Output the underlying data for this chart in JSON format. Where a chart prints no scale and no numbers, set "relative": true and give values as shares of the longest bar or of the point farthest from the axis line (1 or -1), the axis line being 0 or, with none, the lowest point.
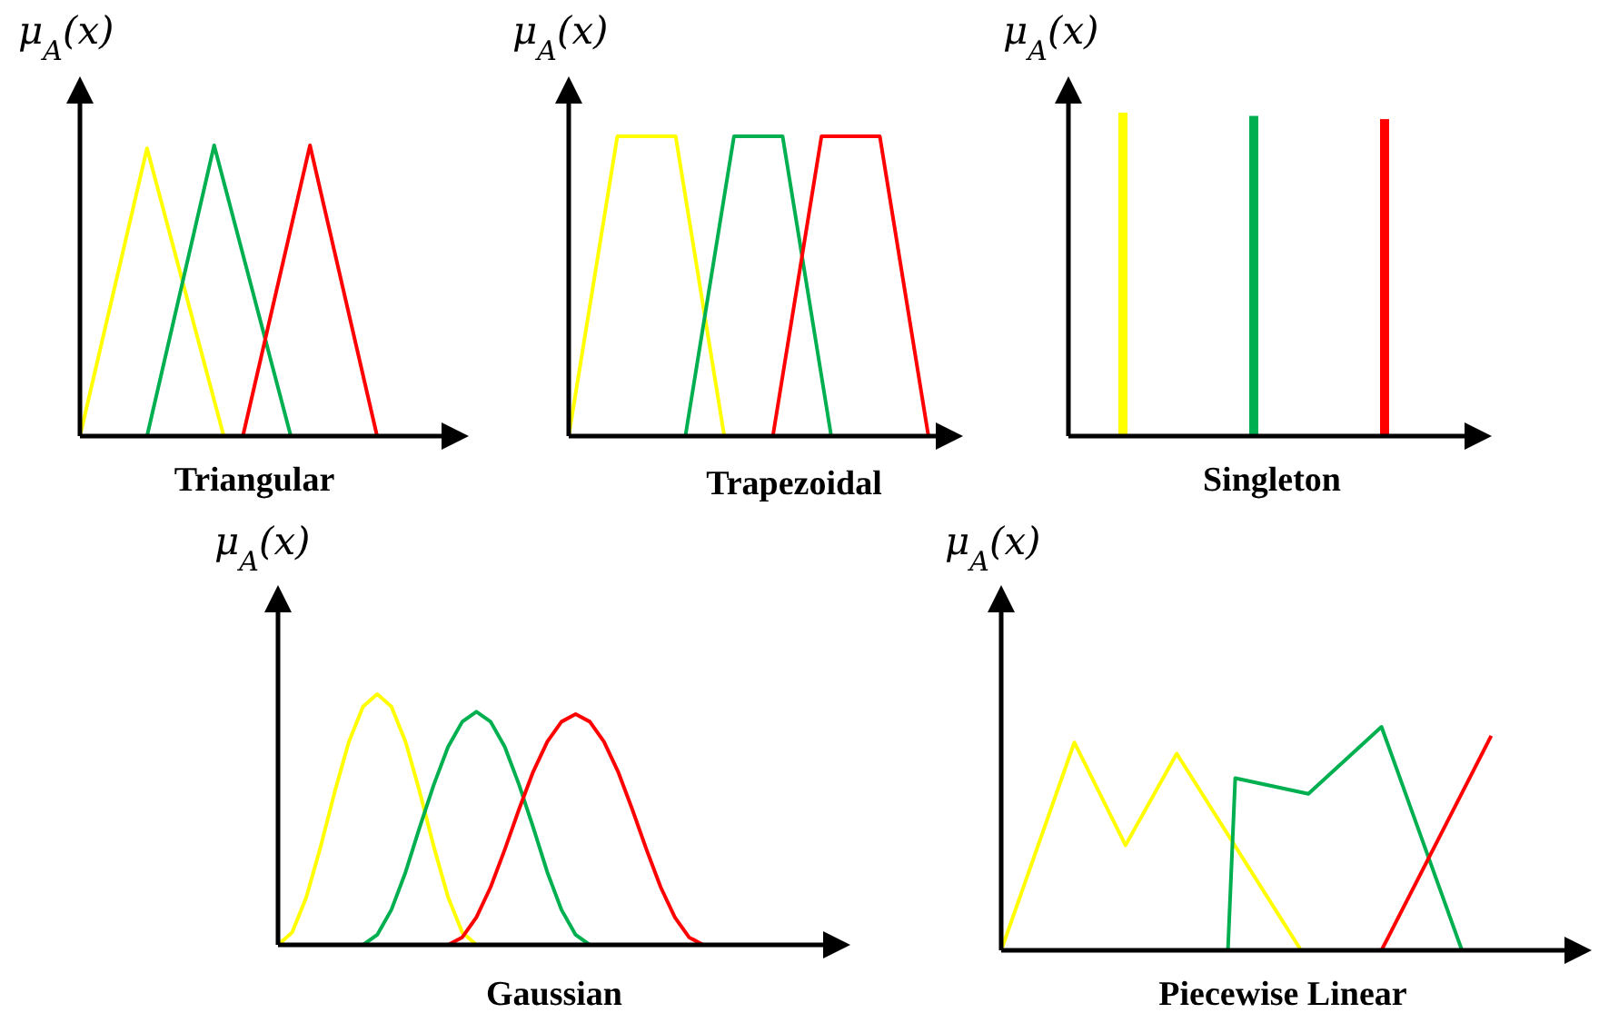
{
  "chart_data": [
    {
      "type": "line",
      "title": "Triangular",
      "ylabel": "μ$_{A}$(x)",
      "relative": true,
      "categories": [
        null,
        null,
        null,
        null,
        null,
        null,
        null,
        null,
        null,
        null,
        null,
        null,
        null,
        null,
        null,
        null,
        null,
        null,
        null,
        null,
        null,
        null,
        null,
        null,
        null,
        null,
        null,
        null,
        null,
        null,
        null,
        null,
        null,
        null,
        null,
        null,
        null,
        null,
        null,
        null,
        null
      ],
      "series": [
        {
          "color": "#ffff00",
          "values": [
            0,
            null,
            null,
            null,
            null,
            null,
            null,
            0.99,
            null,
            null,
            null,
            null,
            null,
            null,
            null,
            0,
            null,
            null,
            null,
            null,
            null,
            null,
            null,
            null,
            null,
            null,
            null,
            null,
            null,
            null,
            null,
            null,
            null,
            null,
            null,
            null,
            null,
            null,
            null,
            null,
            null
          ]
        },
        {
          "color": "#00b050",
          "values": [
            null,
            null,
            null,
            null,
            null,
            null,
            null,
            0,
            null,
            null,
            null,
            null,
            null,
            null,
            1,
            null,
            null,
            null,
            null,
            null,
            null,
            null,
            0,
            null,
            null,
            null,
            null,
            null,
            null,
            null,
            null,
            null,
            null,
            null,
            null,
            null,
            null,
            null,
            null,
            null,
            null
          ]
        },
        {
          "color": "#ff0000",
          "values": [
            null,
            null,
            null,
            null,
            null,
            null,
            null,
            null,
            null,
            null,
            null,
            null,
            null,
            null,
            null,
            null,
            null,
            0,
            null,
            null,
            null,
            null,
            null,
            null,
            1,
            null,
            null,
            null,
            null,
            null,
            null,
            0,
            null,
            null,
            null,
            null,
            null,
            null,
            null,
            null,
            null
          ]
        }
      ]
    },
    {
      "type": "line",
      "title": "Trapezoidal",
      "ylabel": "μ$_{A}$(x)",
      "relative": true,
      "categories": [
        null,
        null,
        null,
        null,
        null,
        null,
        null,
        null,
        null,
        null,
        null,
        null,
        null,
        null,
        null,
        null,
        null,
        null,
        null,
        null,
        null,
        null,
        null,
        null,
        null,
        null,
        null,
        null,
        null,
        null,
        null,
        null,
        null,
        null,
        null,
        null,
        null,
        null,
        null,
        null,
        null
      ],
      "series": [
        {
          "color": "#ffff00",
          "values": [
            0,
            null,
            null,
            null,
            null,
            1,
            null,
            null,
            null,
            null,
            null,
            1,
            null,
            null,
            null,
            null,
            0,
            null,
            null,
            null,
            null,
            null,
            null,
            null,
            null,
            null,
            null,
            null,
            null,
            null,
            null,
            null,
            null,
            null,
            null,
            null,
            null,
            null,
            null,
            null,
            null
          ]
        },
        {
          "color": "#00b050",
          "values": [
            null,
            null,
            null,
            null,
            null,
            null,
            null,
            null,
            null,
            null,
            null,
            null,
            0,
            null,
            null,
            null,
            null,
            1,
            null,
            null,
            null,
            null,
            1,
            null,
            null,
            null,
            null,
            0,
            null,
            null,
            null,
            null,
            null,
            null,
            null,
            null,
            null,
            null,
            null,
            null,
            null
          ]
        },
        {
          "color": "#ff0000",
          "values": [
            null,
            null,
            null,
            null,
            null,
            null,
            null,
            null,
            null,
            null,
            null,
            null,
            null,
            null,
            null,
            null,
            null,
            null,
            null,
            null,
            null,
            0,
            null,
            null,
            null,
            null,
            1,
            null,
            null,
            null,
            null,
            null,
            1,
            null,
            null,
            null,
            null,
            0,
            null,
            null,
            null
          ]
        }
      ]
    },
    {
      "type": "bar",
      "title": "Singleton",
      "ylabel": "μ$_{A}$(x)",
      "relative": true,
      "categories": [
        null,
        null,
        null
      ],
      "values": [
        1,
        0.99,
        0.98
      ],
      "colors": [
        "#ffff00",
        "#00b050",
        "#ff0000"
      ]
    },
    {
      "type": "line",
      "title": "Gaussian",
      "ylabel": "μ$_{A}$(x)",
      "relative": true,
      "categories": [
        null,
        null,
        null,
        null,
        null,
        null,
        null,
        null,
        null,
        null,
        null,
        null,
        null,
        null,
        null,
        null,
        null,
        null,
        null,
        null,
        null,
        null,
        null,
        null,
        null,
        null,
        null,
        null,
        null,
        null,
        null,
        null,
        null,
        null,
        null,
        null,
        null,
        null,
        null,
        null,
        null
      ],
      "series": [
        {
          "color": "#ffff00",
          "values": [
            0,
            0.05,
            0.19,
            0.39,
            0.61,
            0.81,
            0.95,
            1,
            0.95,
            0.81,
            0.61,
            0.39,
            0.19,
            0.05,
            0,
            null,
            null,
            null,
            null,
            null,
            null,
            null,
            null,
            null,
            null,
            null,
            null,
            null,
            null,
            null,
            null,
            null,
            null,
            null,
            null,
            null,
            null,
            null,
            null,
            null,
            null
          ]
        },
        {
          "color": "#00b050",
          "values": [
            null,
            null,
            null,
            null,
            null,
            null,
            0,
            0.04,
            0.14,
            0.29,
            0.47,
            0.64,
            0.79,
            0.89,
            0.93,
            0.89,
            0.79,
            0.64,
            0.47,
            0.29,
            0.14,
            0.04,
            0,
            null,
            null,
            null,
            null,
            null,
            null,
            null,
            null,
            null,
            null,
            null,
            null,
            null,
            null,
            null,
            null,
            null,
            null
          ]
        },
        {
          "color": "#ff0000",
          "values": [
            null,
            null,
            null,
            null,
            null,
            null,
            null,
            null,
            null,
            null,
            null,
            null,
            0,
            0.03,
            0.11,
            0.23,
            0.38,
            0.54,
            0.69,
            0.81,
            0.89,
            0.92,
            0.89,
            0.81,
            0.69,
            0.54,
            0.38,
            0.23,
            0.11,
            0.03,
            0,
            null,
            null,
            null,
            null,
            null,
            null,
            null,
            null,
            null,
            null
          ]
        }
      ]
    },
    {
      "type": "line",
      "title": "Piecewise Linear",
      "ylabel": "μ$_{A}$(x)",
      "relative": true,
      "categories": [
        null,
        null,
        null,
        null,
        null,
        null,
        null,
        null,
        null,
        null,
        null,
        null,
        null,
        null,
        null,
        null,
        null,
        null,
        null,
        null,
        null,
        null,
        null,
        null,
        null,
        null,
        null,
        null,
        null,
        null,
        null,
        null,
        null,
        null,
        null,
        null,
        null,
        null,
        null,
        null,
        null,
        null,
        null,
        null,
        null,
        null,
        null,
        null,
        null,
        null,
        null,
        null,
        null,
        null,
        null,
        null,
        null,
        null,
        null,
        null,
        null,
        null,
        null,
        null,
        null,
        null,
        null,
        null,
        null,
        null,
        null,
        null,
        null,
        null,
        null,
        null,
        null,
        null,
        null,
        null,
        null
      ],
      "series": [
        {
          "color": "#ffff00",
          "values": [
            0,
            null,
            null,
            null,
            null,
            null,
            null,
            null,
            null,
            null,
            0.93,
            null,
            null,
            null,
            null,
            null,
            null,
            0.47,
            null,
            null,
            null,
            null,
            null,
            null,
            0.88,
            null,
            null,
            null,
            null,
            null,
            null,
            null,
            null,
            null,
            null,
            null,
            null,
            null,
            null,
            null,
            null,
            0,
            null,
            null,
            null,
            null,
            null,
            null,
            null,
            null,
            null,
            null,
            null,
            null,
            null,
            null,
            null,
            null,
            null,
            null,
            null,
            null,
            null,
            null,
            null,
            null,
            null,
            null,
            null,
            null,
            null,
            null,
            null,
            null,
            null,
            null,
            null,
            null,
            null,
            null,
            null
          ]
        },
        {
          "color": "#00b050",
          "values": [
            null,
            null,
            null,
            null,
            null,
            null,
            null,
            null,
            null,
            null,
            null,
            null,
            null,
            null,
            null,
            null,
            null,
            null,
            null,
            null,
            null,
            null,
            null,
            null,
            null,
            null,
            null,
            null,
            null,
            null,
            null,
            0,
            0.77,
            null,
            null,
            null,
            null,
            null,
            null,
            null,
            null,
            null,
            0.7,
            null,
            null,
            null,
            null,
            null,
            null,
            null,
            null,
            null,
            1,
            null,
            null,
            null,
            null,
            null,
            null,
            null,
            null,
            null,
            null,
            0,
            null,
            null,
            null,
            null,
            null,
            null,
            null,
            null,
            null,
            null,
            null,
            null,
            null,
            null,
            null,
            null,
            null
          ]
        },
        {
          "color": "#ff0000",
          "values": [
            null,
            null,
            null,
            null,
            null,
            null,
            null,
            null,
            null,
            null,
            null,
            null,
            null,
            null,
            null,
            null,
            null,
            null,
            null,
            null,
            null,
            null,
            null,
            null,
            null,
            null,
            null,
            null,
            null,
            null,
            null,
            null,
            null,
            null,
            null,
            null,
            null,
            null,
            null,
            null,
            null,
            null,
            null,
            null,
            null,
            null,
            null,
            null,
            null,
            null,
            null,
            null,
            0,
            null,
            null,
            null,
            null,
            null,
            null,
            null,
            null,
            null,
            null,
            null,
            null,
            null,
            null,
            0.96,
            null,
            null,
            null,
            null,
            null,
            null,
            null,
            null,
            null,
            null,
            null,
            null,
            null
          ]
        }
      ]
    }
  ]
}
